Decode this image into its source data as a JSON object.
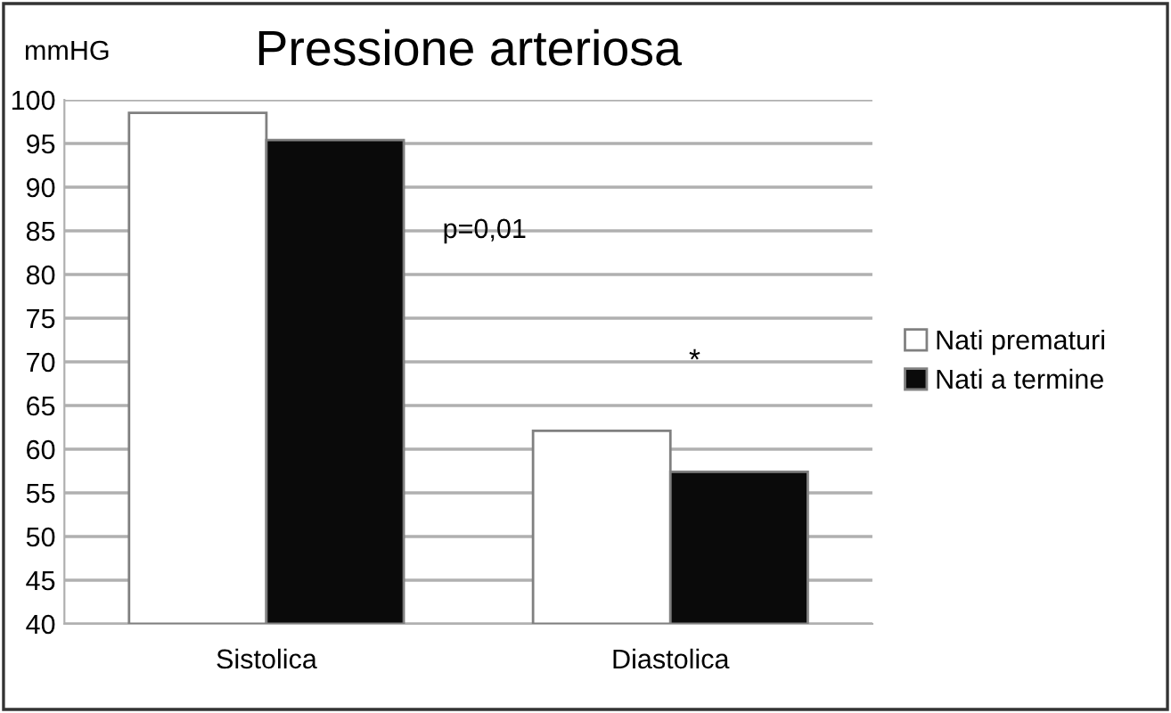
{
  "chart_data": {
    "type": "bar",
    "title": "Pressione arteriosa",
    "ylabel": "mmHG",
    "categories": [
      "Sistolica",
      "Diastolica"
    ],
    "series": [
      {
        "name": "Nati prematuri",
        "color": "#ffffff",
        "values": [
          98.5,
          62.1
        ]
      },
      {
        "name": "Nati a termine",
        "color": "#0a0a0a",
        "values": [
          95.4,
          57.4
        ]
      }
    ],
    "ylim": [
      40,
      100
    ],
    "yticks": [
      40,
      45,
      50,
      55,
      60,
      65,
      70,
      75,
      80,
      85,
      90,
      95,
      100
    ],
    "grid": "y",
    "legend": "right",
    "annotations": [
      "p=0,01",
      "*"
    ]
  }
}
